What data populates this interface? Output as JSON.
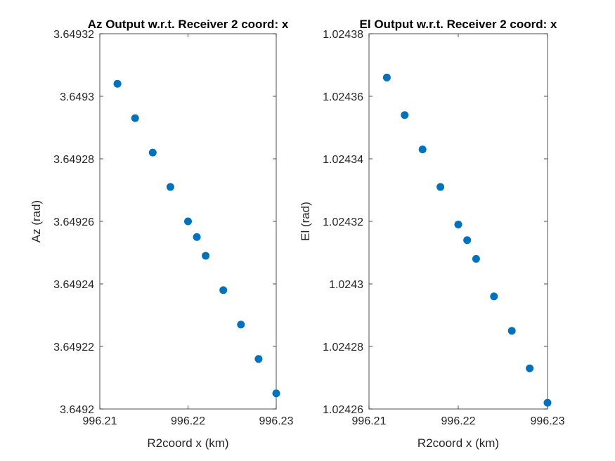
{
  "chart_data": [
    {
      "type": "scatter",
      "title": "Az Output w.r.t. Receiver 2 coord: x",
      "xlabel": "R2coord x (km)",
      "ylabel": "Az (rad)",
      "xlim": [
        996.21,
        996.23
      ],
      "ylim": [
        3.6492,
        3.64932
      ],
      "xticks": [
        996.21,
        996.22,
        996.23
      ],
      "yticks": [
        3.6492,
        3.64922,
        3.64924,
        3.64926,
        3.64928,
        3.6493,
        3.64932
      ],
      "xtick_labels": [
        "996.21",
        "996.22",
        "996.23"
      ],
      "ytick_labels": [
        "3.6492",
        "3.64922",
        "3.64924",
        "3.64926",
        "3.64928",
        "3.6493",
        "3.64932"
      ],
      "marker_color": "#0072BD",
      "grid": false,
      "x": [
        996.212,
        996.214,
        996.216,
        996.218,
        996.22,
        996.221,
        996.222,
        996.224,
        996.226,
        996.228,
        996.23
      ],
      "y": [
        3.649304,
        3.649293,
        3.649282,
        3.649271,
        3.64926,
        3.649255,
        3.649249,
        3.649238,
        3.649227,
        3.649216,
        3.649205
      ]
    },
    {
      "type": "scatter",
      "title": "El Output w.r.t. Receiver 2 coord: x",
      "xlabel": "R2coord x (km)",
      "ylabel": "El (rad)",
      "xlim": [
        996.21,
        996.23
      ],
      "ylim": [
        1.02426,
        1.02438
      ],
      "xticks": [
        996.21,
        996.22,
        996.23
      ],
      "yticks": [
        1.02426,
        1.02428,
        1.0243,
        1.02432,
        1.02434,
        1.02436,
        1.02438
      ],
      "xtick_labels": [
        "996.21",
        "996.22",
        "996.23"
      ],
      "ytick_labels": [
        "1.02426",
        "1.02428",
        "1.0243",
        "1.02432",
        "1.02434",
        "1.02436",
        "1.02438"
      ],
      "marker_color": "#0072BD",
      "grid": false,
      "x": [
        996.212,
        996.214,
        996.216,
        996.218,
        996.22,
        996.221,
        996.222,
        996.224,
        996.226,
        996.228,
        996.23
      ],
      "y": [
        1.024366,
        1.024354,
        1.024343,
        1.024331,
        1.024319,
        1.024314,
        1.024308,
        1.024296,
        1.024285,
        1.024273,
        1.024262
      ]
    }
  ]
}
